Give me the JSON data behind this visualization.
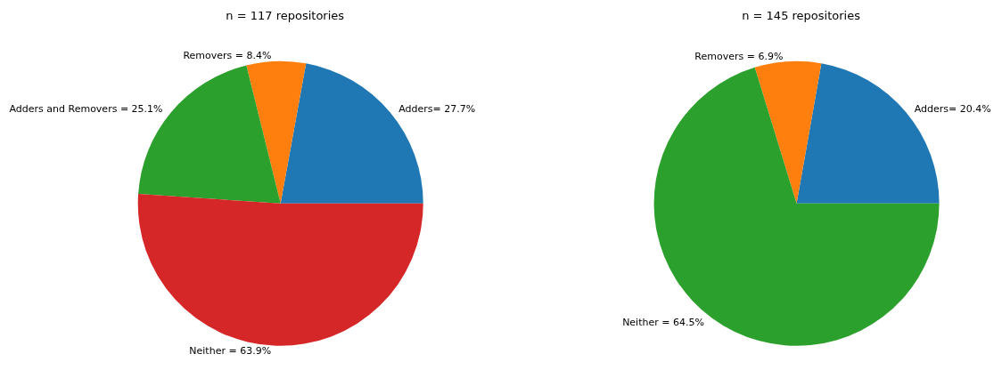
{
  "chart_data": [
    {
      "type": "pie",
      "title": "n = 117 repositories",
      "categories": [
        "Adders= 27.7%",
        "Removers = 8.4%",
        "Adders and Removers = 25.1%",
        "Neither = 63.9%"
      ],
      "values": [
        27.7,
        8.4,
        25.1,
        63.9
      ],
      "colors": [
        "#1f77b4",
        "#ff7f0e",
        "#2ca02c",
        "#d62728"
      ],
      "legend": false
    },
    {
      "type": "pie",
      "title": "n = 145 repositories",
      "categories": [
        "Adders= 20.4%",
        "Removers = 6.9%",
        "Neither = 64.5%"
      ],
      "values": [
        20.4,
        6.9,
        64.5
      ],
      "colors": [
        "#1f77b4",
        "#ff7f0e",
        "#2ca02c"
      ],
      "legend": false
    }
  ]
}
